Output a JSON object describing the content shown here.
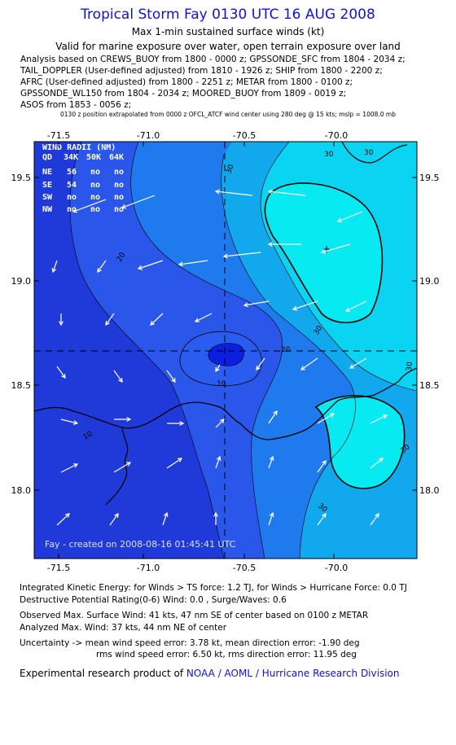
{
  "header": {
    "title": "Tropical Storm Fay 0130 UTC 16 AUG 2008",
    "subtitle1": "Max 1-min sustained surface winds (kt)",
    "subtitle2": "Valid for marine exposure over water, open terrain exposure over land"
  },
  "analysis_lines": [
    "Analysis based on  CREWS_BUOY from 1800 - 0000 z;  GPSSONDE_SFC from 1804 - 2034 z;",
    "TAIL_DOPPLER (User-defined adjusted) from 1810 - 1926 z;  SHIP from 1800 - 2200 z;",
    "AFRC (User-defined adjusted) from 1800 - 2251 z;  METAR from 1800 - 0100 z;",
    "GPSSONDE_WL150 from 1804 - 2034 z;  MOORED_BUOY from 1809 - 0019 z;",
    "ASOS from 1853 - 0056 z;"
  ],
  "position_note": "0130 z position extrapolated from 0000 z OFCL_ATCF wind center using 280 deg @ 15 kts; mslp = 1008.0 mb",
  "map": {
    "lon_ticks": [
      "-71.5",
      "-71.0",
      "-70.5",
      "-70.0"
    ],
    "lat_ticks": [
      "19.5",
      "19.0",
      "18.5",
      "18.0"
    ],
    "contour_labels": [
      "20",
      "30",
      "30",
      "30",
      "30",
      "30",
      "30",
      "20",
      "10",
      "10",
      "30"
    ],
    "wind_radii": {
      "title": "WIND RADII (NM)",
      "header": [
        "QD",
        "34K",
        "50K",
        "64K"
      ],
      "rows": [
        [
          "NE",
          "56",
          "no",
          "no"
        ],
        [
          "SE",
          "54",
          "no",
          "no"
        ],
        [
          "SW",
          "no",
          "no",
          "no"
        ],
        [
          "NW",
          "no",
          "no",
          "no"
        ]
      ]
    },
    "credit": "Fay - created on 2008-08-16 01:45:41 UTC",
    "center_marker": "+",
    "colors": {
      "deep": "#1f3ad8",
      "dark": "#2a56ea",
      "mid": "#1f7aee",
      "light": "#12a8ee",
      "cyan": "#0ad4f2",
      "bright": "#08eaf2",
      "core": "#0a1fe0",
      "arrows": "#ffffff"
    }
  },
  "footer": {
    "ike": "Integrated Kinetic Energy:  for Winds > TS force: 1.2 TJ,  for Winds > Hurricane Force: 0.0 TJ",
    "dpr": "Destructive Potential Rating(0-6)   Wind: 0.0 , Surge/Waves: 0.6",
    "observed": "Observed Max. Surface Wind: 41 kts, 47 nm SE of center based on 0100 z METAR",
    "analyzed": "Analyzed Max. Wind: 37 kts, 44 nm NE of center",
    "uncertainty1": "Uncertainty -> mean wind speed error: 3.78 kt,   mean direction error:  -1.90 deg",
    "uncertainty2": "rms wind speed error: 6.50 kt,   rms direction error: 11.95 deg",
    "credit_prefix": "Experimental research product of ",
    "credit_link": "NOAA / AOML / Hurricane Research Division"
  }
}
